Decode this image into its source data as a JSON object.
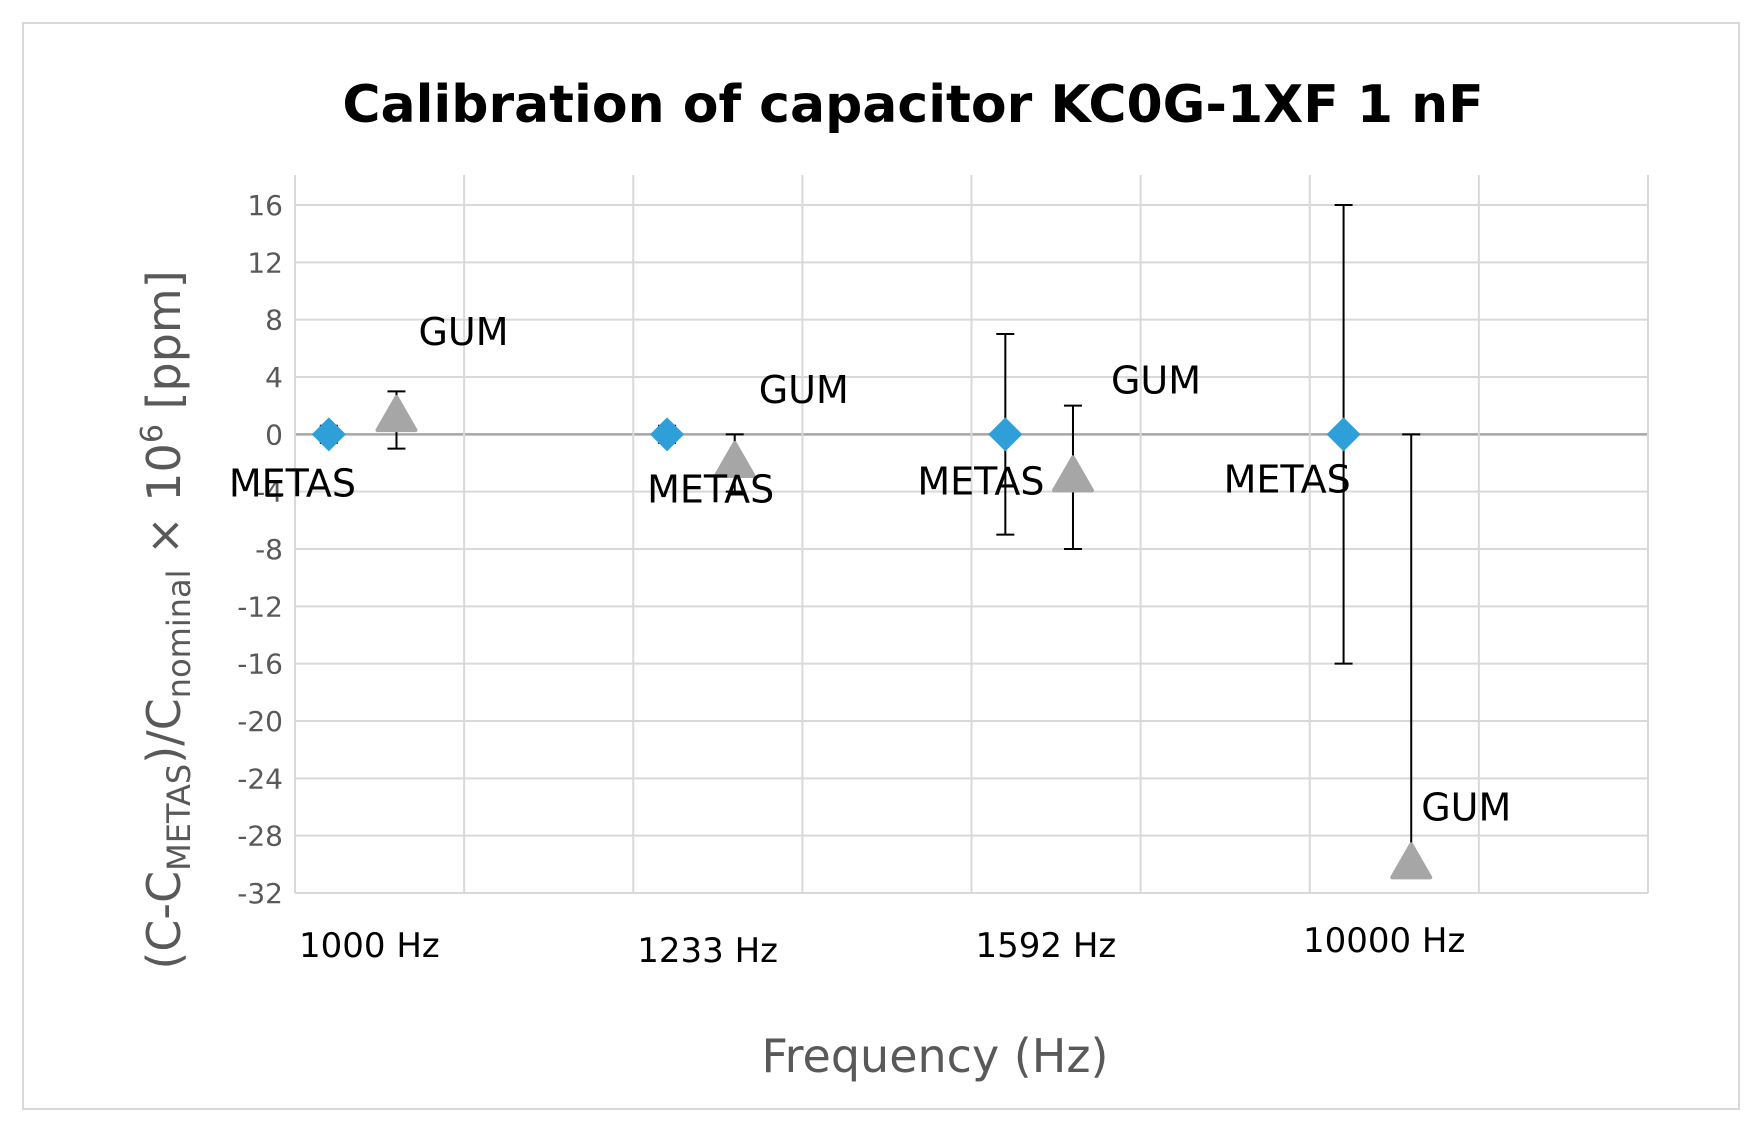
{
  "chart_data": {
    "type": "scatter",
    "title": "Calibration of capacitor KC0G-1XF 1 nF",
    "xlabel": "Frequency (Hz)",
    "ylabel": {
      "prefix": "(C-C",
      "sub1": "METAS",
      "mid": ")/C",
      "sub2": "nominal",
      "times": " × 10",
      "sup": "6",
      "suffix": " [ppm]"
    },
    "categories": [
      "1000 Hz",
      "1233 Hz",
      "1592 Hz",
      "10000 Hz"
    ],
    "ylim": [
      -32,
      16
    ],
    "yticks": [
      16,
      12,
      8,
      4,
      0,
      -4,
      -8,
      -12,
      -16,
      -20,
      -24,
      -28,
      -32
    ],
    "grid": true,
    "series": [
      {
        "name": "METAS",
        "marker": "diamond",
        "color": "#2e9fd9",
        "values": [
          0,
          0,
          0,
          0
        ],
        "err_low": [
          -0.6,
          -0.6,
          -7,
          -16
        ],
        "err_high": [
          0.6,
          0.6,
          7,
          16
        ]
      },
      {
        "name": "GUM",
        "marker": "triangle",
        "color": "#a6a6a6",
        "values": [
          1.2,
          -2,
          -3,
          -30
        ],
        "err_low": [
          -1,
          -4,
          -8,
          -30
        ],
        "err_high": [
          3,
          0,
          2,
          0
        ]
      }
    ],
    "annotations": [
      {
        "text": "METAS",
        "series": 0,
        "category": 0
      },
      {
        "text": "GUM",
        "series": 1,
        "category": 0
      },
      {
        "text": "METAS",
        "series": 0,
        "category": 1
      },
      {
        "text": "GUM",
        "series": 1,
        "category": 1
      },
      {
        "text": "METAS",
        "series": 0,
        "category": 2
      },
      {
        "text": "GUM",
        "series": 1,
        "category": 2
      },
      {
        "text": "METAS",
        "series": 0,
        "category": 3
      },
      {
        "text": "GUM",
        "series": 1,
        "category": 3
      }
    ]
  }
}
